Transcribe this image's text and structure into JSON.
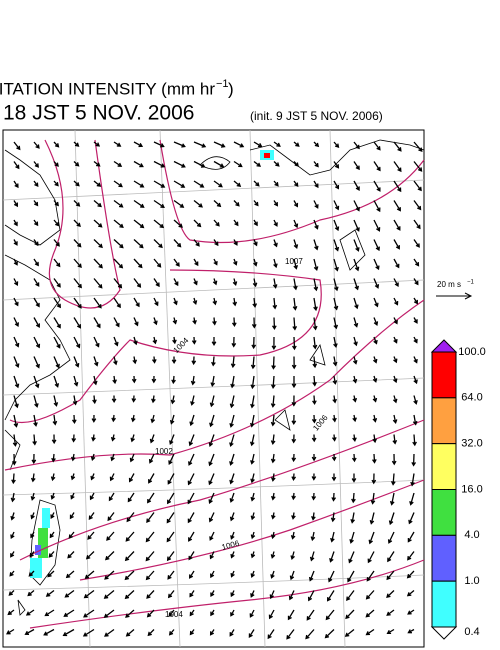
{
  "header": {
    "title": "PRECIPITATION INTENSITY (mm hr",
    "title_exponent": "−1",
    "title_close": ")",
    "valid_time": "18 JST 5 NOV. 2006",
    "init_time": "(init. 9 JST 5 NOV. 2006)"
  },
  "vector_legend": {
    "unit": "20 m s",
    "unit_exponent": "−1"
  },
  "colorbar": {
    "top_color": "#a020f0",
    "bottom_color": "#ffffff",
    "segments": [
      {
        "label": "100.0",
        "color": "#ff0000"
      },
      {
        "label": "64.0",
        "color": "#ffa040"
      },
      {
        "label": "32.0",
        "color": "#ffff60"
      },
      {
        "label": "16.0",
        "color": "#40e040"
      },
      {
        "label": "4.0",
        "color": "#6060ff"
      },
      {
        "label": "1.0",
        "color": "#40ffff"
      }
    ],
    "bottom_label": "0.4"
  },
  "contours": {
    "labels": [
      "1007",
      "1004",
      "1002",
      "1006",
      "1006",
      "1004"
    ]
  }
}
